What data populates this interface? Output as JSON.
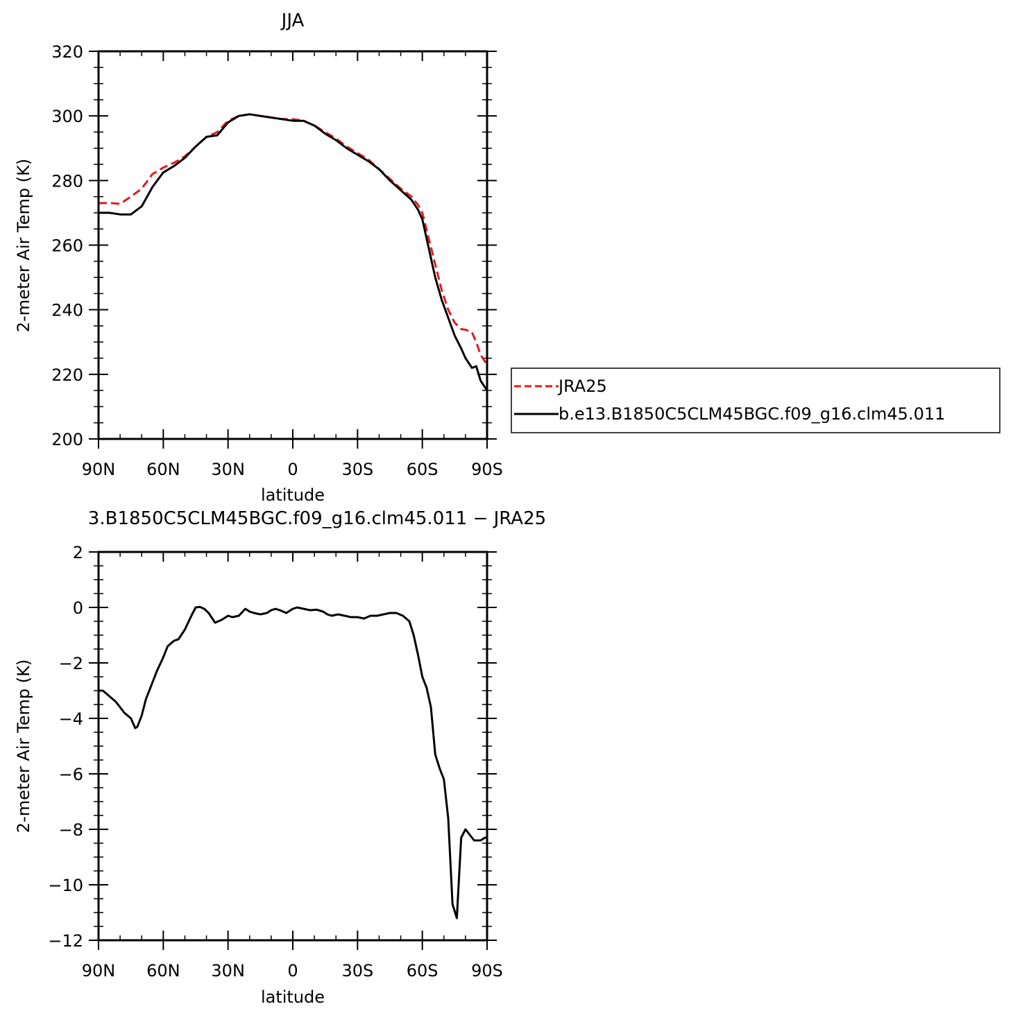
{
  "colors": {
    "jra": "#e31a1c",
    "model": "#000000",
    "axis": "#000000"
  },
  "chart_data": [
    {
      "type": "line",
      "title": "JJA",
      "xlabel": "latitude",
      "ylabel": "2-meter Air Temp (K)",
      "xlim": [
        90,
        -90
      ],
      "ylim": [
        200,
        320
      ],
      "xticks": [
        90,
        60,
        30,
        0,
        -30,
        -60,
        -90
      ],
      "xtick_labels": [
        "90N",
        "60N",
        "30N",
        "0",
        "30S",
        "60S",
        "90S"
      ],
      "yticks": [
        200,
        220,
        240,
        260,
        280,
        300,
        320
      ],
      "ytick_labels": [
        "200",
        "220",
        "240",
        "260",
        "280",
        "300",
        "320"
      ],
      "legend_position": "right",
      "series": [
        {
          "name": "JRA25",
          "style": "dashed",
          "color": "#e31a1c",
          "x": [
            90,
            85,
            80,
            75,
            70,
            65,
            60,
            55,
            50,
            45,
            40,
            35,
            30,
            25,
            20,
            15,
            10,
            5,
            0,
            -5,
            -10,
            -15,
            -20,
            -25,
            -30,
            -35,
            -40,
            -45,
            -50,
            -55,
            -58,
            -60,
            -63,
            -66,
            -69,
            -72,
            -75,
            -78,
            -80,
            -83,
            -85,
            -87,
            -90
          ],
          "y": [
            273,
            273,
            272.8,
            275,
            277.5,
            282,
            284,
            285.5,
            287.5,
            290.5,
            293.5,
            295,
            298.5,
            300,
            300.5,
            300,
            299.5,
            299,
            299,
            298.5,
            297,
            295,
            293,
            290.5,
            288.5,
            286.5,
            283.5,
            280.5,
            277.5,
            275,
            272.5,
            270,
            262,
            254,
            246,
            240,
            236,
            234,
            233.8,
            233,
            230,
            226,
            223
          ]
        },
        {
          "name": "b.e13.B1850C5CLM45BGC.f09_g16.clm45.011",
          "style": "solid",
          "color": "#000000",
          "x": [
            90,
            85,
            80,
            75,
            70,
            65,
            60,
            55,
            50,
            45,
            40,
            35,
            30,
            25,
            20,
            15,
            10,
            5,
            0,
            -5,
            -10,
            -15,
            -20,
            -25,
            -30,
            -35,
            -40,
            -45,
            -50,
            -55,
            -58,
            -60,
            -63,
            -66,
            -69,
            -72,
            -75,
            -78,
            -80,
            -83,
            -85,
            -87,
            -90
          ],
          "y": [
            270,
            270,
            269.5,
            269.5,
            272,
            278,
            282.5,
            284.5,
            287,
            290.5,
            293.5,
            294,
            298,
            300,
            300.5,
            300,
            299.5,
            299,
            298.5,
            298.5,
            297,
            294.5,
            292.5,
            290,
            288,
            286,
            283.5,
            280,
            277,
            274,
            271,
            268,
            259,
            250,
            243,
            237.5,
            232,
            228,
            225,
            222,
            222.5,
            218,
            215
          ]
        }
      ]
    },
    {
      "type": "line",
      "title": "3.B1850C5CLM45BGC.f09_g16.clm45.011 − JRA25",
      "xlabel": "latitude",
      "ylabel": "2-meter Air Temp (K)",
      "xlim": [
        90,
        -90
      ],
      "ylim": [
        -12,
        2
      ],
      "xticks": [
        90,
        60,
        30,
        0,
        -30,
        -60,
        -90
      ],
      "xtick_labels": [
        "90N",
        "60N",
        "30N",
        "0",
        "30S",
        "60S",
        "90S"
      ],
      "yticks": [
        -12,
        -10,
        -8,
        -6,
        -4,
        -2,
        0,
        2
      ],
      "ytick_labels": [
        "−12",
        "−10",
        "−8",
        "−6",
        "−4",
        "−2",
        "0",
        "2"
      ],
      "series": [
        {
          "color": "#000000",
          "style": "solid",
          "x": [
            90,
            88,
            85,
            82,
            80,
            78,
            75,
            73,
            72,
            70,
            68,
            66,
            63,
            60,
            58,
            55,
            53,
            50,
            47,
            45,
            43,
            41,
            39,
            36,
            33,
            30,
            28,
            25,
            22,
            20,
            18,
            15,
            12,
            10,
            8,
            6,
            3,
            0,
            -2,
            -5,
            -8,
            -11,
            -14,
            -16,
            -18,
            -21,
            -24,
            -27,
            -30,
            -33,
            -36,
            -39,
            -42,
            -45,
            -48,
            -51,
            -54,
            -56,
            -58,
            -60,
            -62,
            -64,
            -66,
            -68,
            -70,
            -72,
            -74,
            -76,
            -78,
            -80,
            -82,
            -84,
            -87,
            -89,
            -90
          ],
          "y": [
            -3,
            -3,
            -3.2,
            -3.4,
            -3.6,
            -3.8,
            -4.0,
            -4.35,
            -4.3,
            -3.9,
            -3.3,
            -2.9,
            -2.3,
            -1.8,
            -1.4,
            -1.2,
            -1.15,
            -0.8,
            -0.3,
            0.0,
            0.02,
            -0.05,
            -0.2,
            -0.55,
            -0.45,
            -0.3,
            -0.35,
            -0.3,
            -0.05,
            -0.15,
            -0.2,
            -0.25,
            -0.2,
            -0.1,
            -0.05,
            -0.1,
            -0.2,
            -0.05,
            0.0,
            -0.05,
            -0.1,
            -0.08,
            -0.15,
            -0.25,
            -0.3,
            -0.25,
            -0.3,
            -0.35,
            -0.35,
            -0.4,
            -0.3,
            -0.3,
            -0.25,
            -0.2,
            -0.2,
            -0.3,
            -0.5,
            -1.0,
            -1.7,
            -2.5,
            -2.9,
            -3.6,
            -5.3,
            -5.8,
            -6.2,
            -7.6,
            -10.7,
            -11.2,
            -8.3,
            -8.0,
            -8.2,
            -8.4,
            -8.4,
            -8.3,
            -8.3
          ]
        }
      ]
    }
  ]
}
